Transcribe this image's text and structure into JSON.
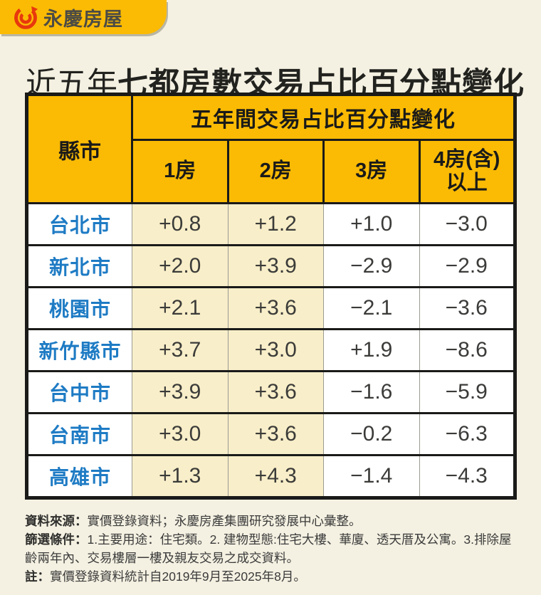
{
  "page": {
    "bg_color": "#F4F1E2",
    "accent_yellow": "#FBBB04",
    "highlight_cream": "#F8EEC9",
    "city_blue": "#1E7BC4",
    "border_black": "#1A1A19",
    "value_gray": "#3B3B39",
    "logo_red": "#E8380D"
  },
  "brand": {
    "logo_icon": "yungching-spiral-arrow-icon",
    "logo_text": "永慶房屋"
  },
  "title": {
    "prefix": "近五年",
    "main": "七都房數交易占比百分點變化"
  },
  "chart_data": {
    "type": "table",
    "title": "近五年七都房數交易占比百分點變化",
    "group_header": "五年間交易占比百分點變化",
    "row_header": "縣市",
    "columns": [
      "1房",
      "2房",
      "3房",
      "4房(含)以上"
    ],
    "highlight_columns": [
      0,
      1
    ],
    "rows": [
      {
        "city": "台北市",
        "values": [
          "+0.8",
          "+1.2",
          "+1.0",
          "−3.0"
        ]
      },
      {
        "city": "新北市",
        "values": [
          "+2.0",
          "+3.9",
          "−2.9",
          "−2.9"
        ]
      },
      {
        "city": "桃園市",
        "values": [
          "+2.1",
          "+3.6",
          "−2.1",
          "−3.6"
        ]
      },
      {
        "city": "新竹縣市",
        "values": [
          "+3.7",
          "+3.0",
          "+1.9",
          "−8.6"
        ]
      },
      {
        "city": "台中市",
        "values": [
          "+3.9",
          "+3.6",
          "−1.6",
          "−5.9"
        ]
      },
      {
        "city": "台南市",
        "values": [
          "+3.0",
          "+3.6",
          "−0.2",
          "−6.3"
        ]
      },
      {
        "city": "高雄市",
        "values": [
          "+1.3",
          "+4.3",
          "−1.4",
          "−4.3"
        ]
      }
    ]
  },
  "footnotes": [
    {
      "label": "資料來源：",
      "text": "實價登錄資料；永慶房產集團研究發展中心彙整。"
    },
    {
      "label": "篩選條件：",
      "text": "1.主要用途：住宅類。2. 建物型態:住宅大樓、華廈、透天厝及公寓。3.排除屋齡兩年內、交易樓層一樓及親友交易之成交資料。"
    },
    {
      "label": "註：",
      "text": "實價登錄資料統計自2019年9月至2025年8月。"
    }
  ]
}
